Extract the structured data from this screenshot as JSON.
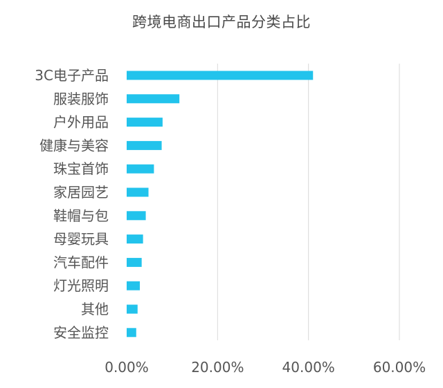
{
  "chart_data": {
    "type": "bar",
    "orientation": "horizontal",
    "title": "跨境电商出口产品分类占比",
    "xlabel": "",
    "ylabel": "",
    "categories": [
      "3C电子产品",
      "服装服饰",
      "户外用品",
      "健康与美容",
      "珠宝首饰",
      "家居园艺",
      "鞋帽与包",
      "母婴玩具",
      "汽车配件",
      "灯光照明",
      "其他",
      "安全监控"
    ],
    "values": [
      0.41,
      0.116,
      0.079,
      0.077,
      0.06,
      0.048,
      0.042,
      0.036,
      0.033,
      0.029,
      0.024,
      0.021
    ],
    "xlim": [
      0,
      0.6
    ],
    "xticks": [
      0,
      0.2,
      0.4,
      0.6
    ],
    "xtick_labels": [
      "0.00%",
      "20.00%",
      "40.00%",
      "60.00%"
    ],
    "grid": "vertical",
    "legend": "none",
    "bar_color": "#22c3ec",
    "grid_color": "#d9d9d9",
    "text_color": "#555555"
  }
}
